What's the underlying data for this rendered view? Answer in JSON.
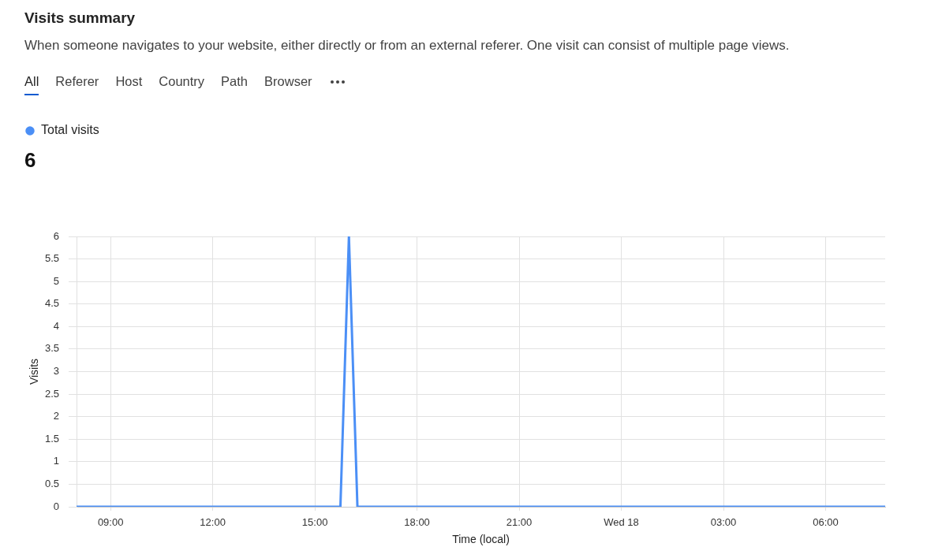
{
  "chart_data": {
    "type": "line",
    "title": "Visits summary",
    "subtitle": "When someone navigates to your website, either directly or from an external referer. One visit can consist of multiple page views.",
    "annotations": [
      "All",
      "Referer",
      "Host",
      "Country",
      "Path",
      "Browser",
      "6"
    ],
    "xlabel": "Time (local)",
    "ylabel": "Visits",
    "x": [
      "--09-17T08:00",
      "--09-17T15:45",
      "--09-17T16:00",
      "--09-17T16:15",
      "--09-18T07:45"
    ],
    "series": [
      {
        "name": "Total visits",
        "color": "#4b8ff6",
        "values": [
          0,
          0,
          6,
          0,
          0
        ]
      }
    ],
    "xlim": [
      "--09-17T08:00",
      "--09-18T07:45"
    ],
    "xticks": [
      {
        "value": "--09-17T09:00",
        "label": "09:00"
      },
      {
        "value": "--09-17T12:00",
        "label": "12:00"
      },
      {
        "value": "--09-17T15:00",
        "label": "15:00"
      },
      {
        "value": "--09-17T18:00",
        "label": "18:00"
      },
      {
        "value": "--09-17T21:00",
        "label": "21:00"
      },
      {
        "value": "--09-18T00:00",
        "label": "Wed 18"
      },
      {
        "value": "--09-18T03:00",
        "label": "03:00"
      },
      {
        "value": "--09-18T06:00",
        "label": "06:00"
      }
    ],
    "ylim": [
      0,
      6
    ],
    "yticks": [
      0,
      0.5,
      1,
      1.5,
      2,
      2.5,
      3,
      3.5,
      4,
      4.5,
      5,
      5.5,
      6
    ],
    "grid": true,
    "legend": "top left"
  }
}
